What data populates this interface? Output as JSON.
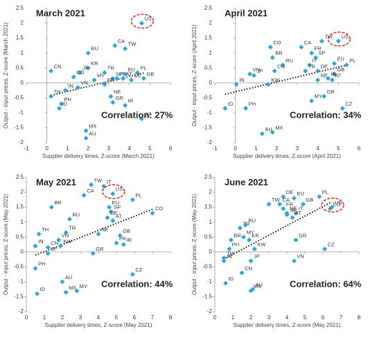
{
  "chart_data": [
    {
      "type": "scatter",
      "title": "March 2021",
      "xlabel": "Supplier delivery times, Z-score (March 2021)",
      "ylabel": "Output - input prices, Z-score (March 2021)",
      "annotation": "Correlation: 27%",
      "xlim": [
        -1,
        6
      ],
      "xticks": [
        -1,
        0,
        1,
        2,
        3,
        4,
        5,
        6
      ],
      "ylim": [
        -2,
        2.5
      ],
      "yticks": [
        -2,
        -1.5,
        -1,
        -0.5,
        0,
        0.5,
        1,
        1.5,
        2,
        2.5
      ],
      "color": "#29a8e0",
      "highlight_color": "#e02020",
      "highlight_point": 0,
      "trendline": true,
      "labels": [
        "US",
        "TW",
        "CA",
        "RU",
        "KR",
        "JP",
        "CN",
        "CO",
        "MY",
        "TR",
        "SP",
        "EU",
        "DE",
        "PL",
        "GB",
        "IT",
        "FR",
        "AT",
        "VN",
        "IN",
        "TH",
        "NE",
        "PH",
        "ID",
        "GR",
        "IR",
        "CZ",
        "MX",
        "AU"
      ],
      "x": [
        4.6,
        3.8,
        3.3,
        2.0,
        2.0,
        1.6,
        0.2,
        1.3,
        2.3,
        2.8,
        3.2,
        3.8,
        4.1,
        4.4,
        4.7,
        3.4,
        2.8,
        3.7,
        1.5,
        0.9,
        0.2,
        3.1,
        0.7,
        0.6,
        3.2,
        3.8,
        4.6,
        1.9,
        1.9
      ],
      "values": [
        2.0,
        1.15,
        1.25,
        1.0,
        0.5,
        0.35,
        0.4,
        0.2,
        0.1,
        0.35,
        0.15,
        0.3,
        0.1,
        0.35,
        0.15,
        0.15,
        -0.05,
        0.15,
        -0.15,
        -0.25,
        -0.45,
        -0.45,
        -0.7,
        -0.85,
        -0.65,
        -0.75,
        -1.2,
        -1.6,
        -1.85
      ]
    },
    {
      "type": "scatter",
      "title": "April 2021",
      "xlabel": "Supplier delivery times, Z-score (April 2021)",
      "ylabel": "Output - input prices, Z-score (April 2021)",
      "annotation": "Correlation: 34%",
      "xlim": [
        -1,
        6
      ],
      "xticks": [
        -1,
        0,
        1,
        2,
        3,
        4,
        5,
        6
      ],
      "ylim": [
        -2,
        2.5
      ],
      "yticks": [
        -2,
        -1.5,
        -1,
        -0.5,
        0,
        0.5,
        1,
        1.5,
        2,
        2.5
      ],
      "color": "#29a8e0",
      "highlight_color": "#e02020",
      "highlight_point": 0,
      "trendline": true,
      "labels": [
        "US",
        "TW",
        "CA",
        "CO",
        "FR",
        "SP",
        "BR",
        "EU",
        "RU",
        "IT",
        "PL",
        "VN",
        "DE",
        "TR",
        "GB",
        "CN",
        "JP",
        "NE",
        "IR",
        "AT",
        "IN",
        "KW",
        "MY",
        "GR",
        "ID",
        "PH",
        "CZ",
        "MX",
        "AU"
      ],
      "x": [
        5.0,
        4.2,
        3.2,
        1.7,
        3.7,
        3.9,
        1.8,
        4.8,
        2.3,
        3.6,
        5.4,
        0.7,
        4.0,
        3.4,
        4.8,
        1.9,
        0.9,
        4.0,
        4.5,
        4.7,
        0.05,
        1.6,
        3.7,
        4.3,
        -0.5,
        0.5,
        5.2,
        1.8,
        1.3
      ],
      "values": [
        1.4,
        1.4,
        1.2,
        1.2,
        1.0,
        0.85,
        0.85,
        0.65,
        0.6,
        0.6,
        0.6,
        0.3,
        0.4,
        0.4,
        0.3,
        0.4,
        0.25,
        0.1,
        0.15,
        0.1,
        -0.05,
        -0.05,
        -0.6,
        -0.45,
        -0.85,
        -0.85,
        -0.85,
        -1.65,
        -1.7
      ]
    },
    {
      "type": "scatter",
      "title": "May 2021",
      "xlabel": "Supplier delivery times, Z-score (May 2021)",
      "ylabel": "Output - input prices, Z-score (May 2021)",
      "annotation": "Correlation: 44%",
      "xlim": [
        0,
        8
      ],
      "xticks": [
        0,
        1,
        2,
        3,
        4,
        5,
        6,
        7,
        8
      ],
      "ylim": [
        -2,
        2.5
      ],
      "yticks": [
        -2,
        -1.5,
        -1,
        -0.5,
        0,
        0.5,
        1,
        1.5,
        2,
        2.5
      ],
      "color": "#29a8e0",
      "highlight_color": "#e02020",
      "highlight_point": 2,
      "trendline": true,
      "labels": [
        "TW",
        "IT",
        "US",
        "CA",
        "PL",
        "EU",
        "BR",
        "SP",
        "CO",
        "DE",
        "AT",
        "TH",
        "NE",
        "TR",
        "RU",
        "VN",
        "GB",
        "FR",
        "IR",
        "IN",
        "CN",
        "KW",
        "JP",
        "GR",
        "PH",
        "CZ",
        "AU",
        "MY",
        "MX",
        "ID"
      ],
      "x": [
        3.6,
        4.3,
        4.8,
        3.2,
        5.9,
        4.6,
        1.4,
        4.7,
        7.0,
        4.5,
        4.8,
        0.7,
        4.0,
        2.2,
        2.4,
        1.8,
        5.2,
        5.0,
        5.4,
        0.5,
        1.2,
        1.9,
        1.2,
        3.7,
        0.5,
        5.9,
        2.0,
        2.8,
        2.2,
        0.6
      ],
      "values": [
        2.25,
        2.2,
        1.95,
        1.9,
        1.75,
        1.5,
        1.5,
        1.35,
        1.3,
        1.15,
        1.05,
        0.6,
        0.6,
        0.65,
        1.1,
        0.4,
        0.55,
        0.3,
        0.25,
        0.2,
        0.15,
        0.2,
        -0.05,
        -0.05,
        -0.55,
        -0.75,
        -1.0,
        -1.3,
        -1.35,
        -1.4
      ]
    },
    {
      "type": "scatter",
      "title": "June 2021",
      "xlabel": "Supplier delivery times, Z-score (May 2021)",
      "ylabel": "Output - input prices, Z-score (May 2021)",
      "annotation": "Correlation: 64%",
      "xlim": [
        0,
        8
      ],
      "xticks": [
        0,
        1,
        2,
        3,
        4,
        5,
        6,
        7,
        8
      ],
      "ylim": [
        -2,
        2.5
      ],
      "yticks": [
        -2,
        -1.5,
        -1,
        -0.5,
        0,
        0.5,
        1,
        1.5,
        2,
        2.5
      ],
      "color": "#29a8e0",
      "highlight_color": "#e02020",
      "highlight_point": 9,
      "trendline": true,
      "labels": [
        "DE",
        "EU",
        "PL",
        "TW",
        "CA",
        "GB",
        "FR",
        "CO",
        "NE",
        "US",
        "SP",
        "IT",
        "AT",
        "TR",
        "RU",
        "MY",
        "BR",
        "KR",
        "GR",
        "PH",
        "KW",
        "CZ",
        "TH",
        "VN",
        "IN",
        "JP",
        "CN",
        "ID",
        "AU",
        "MX"
      ],
      "x": [
        3.8,
        4.4,
        5.8,
        3.0,
        3.6,
        4.9,
        3.8,
        6.4,
        4.0,
        6.5,
        4.0,
        4.5,
        4.3,
        1.4,
        1.7,
        1.6,
        0.9,
        1.9,
        4.5,
        0.8,
        2.2,
        6.1,
        0.5,
        4.4,
        0.5,
        2.0,
        1.5,
        0.6,
        2.1,
        2.0
      ],
      "values": [
        1.85,
        1.8,
        1.85,
        1.6,
        1.6,
        1.6,
        1.45,
        1.45,
        1.3,
        1.5,
        1.25,
        1.3,
        1.15,
        0.8,
        0.9,
        0.5,
        0.4,
        0.4,
        0.4,
        0.1,
        0.1,
        0.1,
        -0.2,
        -0.3,
        -0.3,
        -0.3,
        -0.7,
        -1.05,
        -1.25,
        -1.3
      ]
    }
  ]
}
